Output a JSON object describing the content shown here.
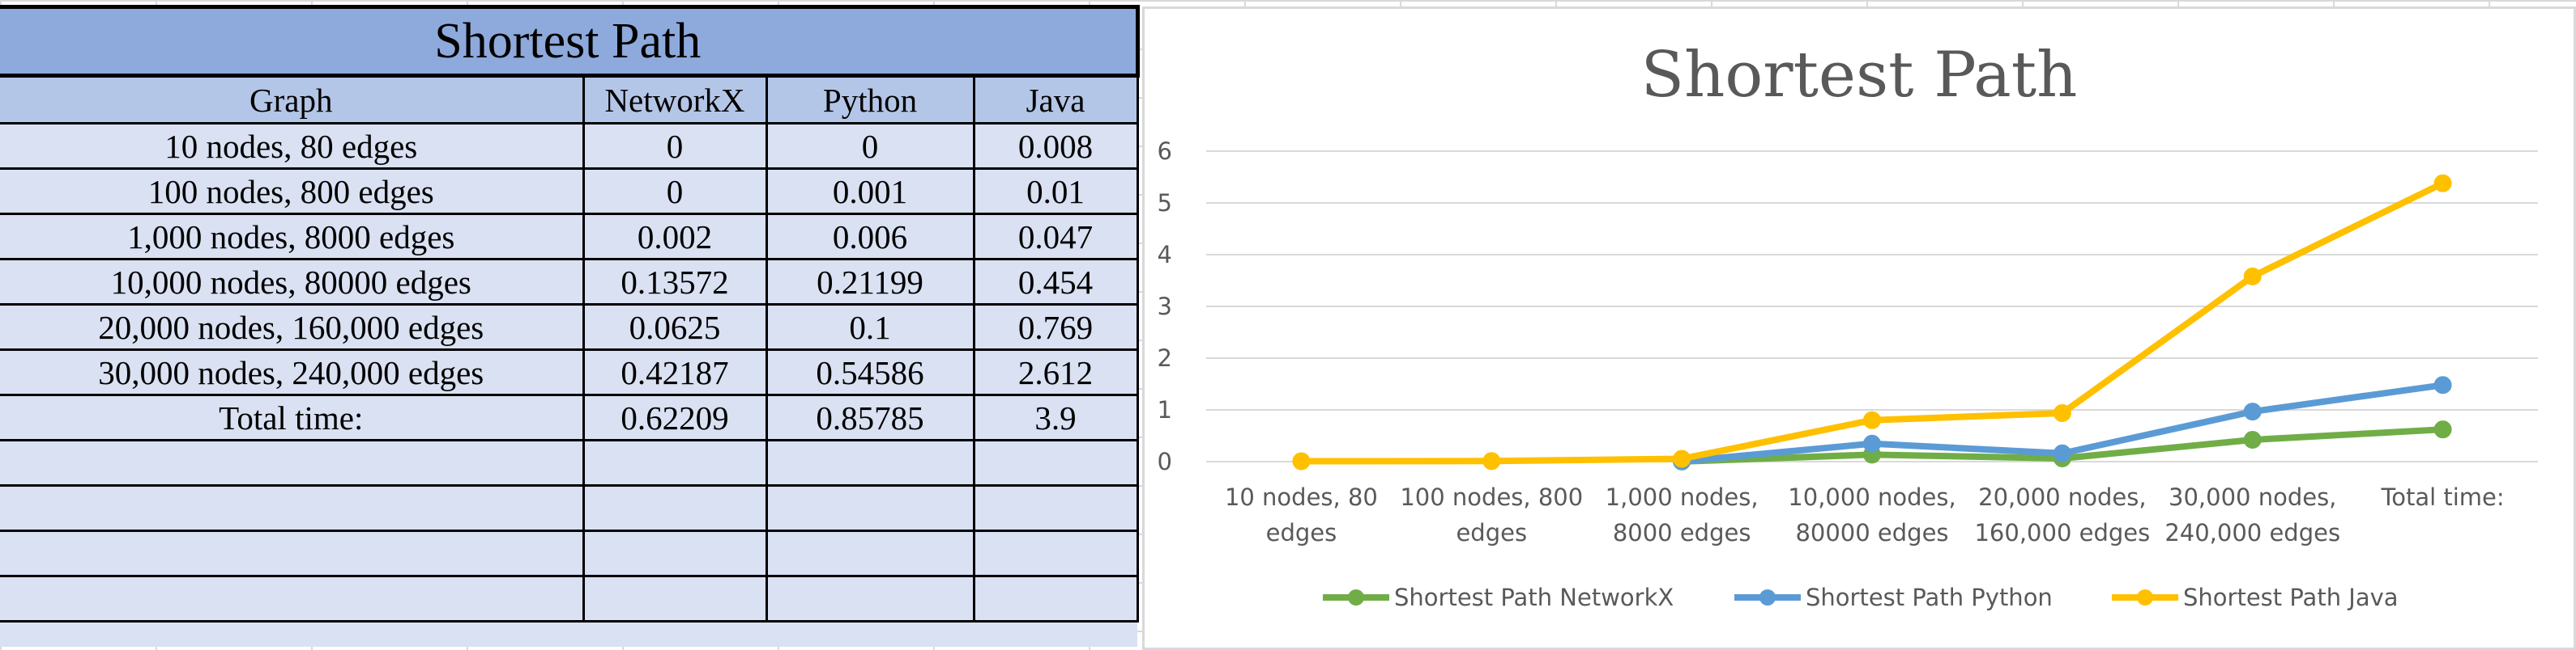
{
  "table": {
    "title": "Shortest Path",
    "headers": [
      "Graph",
      "NetworkX",
      "Python",
      "Java"
    ],
    "rows": [
      [
        "10 nodes, 80 edges",
        "0",
        "0",
        "0.008"
      ],
      [
        "100 nodes, 800 edges",
        "0",
        "0.001",
        "0.01"
      ],
      [
        "1,000 nodes, 8000 edges",
        "0.002",
        "0.006",
        "0.047"
      ],
      [
        "10,000 nodes, 80000 edges",
        "0.13572",
        "0.21199",
        "0.454"
      ],
      [
        "20,000 nodes, 160,000 edges",
        "0.0625",
        "0.1",
        "0.769"
      ],
      [
        "30,000 nodes, 240,000 edges",
        "0.42187",
        "0.54586",
        "2.612"
      ],
      [
        "Total time:",
        "0.62209",
        "0.85785",
        "3.9"
      ],
      [
        "",
        "",
        "",
        ""
      ],
      [
        "",
        "",
        "",
        ""
      ],
      [
        "",
        "",
        "",
        ""
      ],
      [
        "",
        "",
        "",
        ""
      ]
    ]
  },
  "chart_data": {
    "type": "line",
    "title": "Shortest Path",
    "categories": [
      [
        "10 nodes, 80",
        "edges"
      ],
      [
        "100 nodes, 800",
        "edges"
      ],
      [
        "1,000 nodes,",
        "8000 edges"
      ],
      [
        "10,000 nodes,",
        "80000 edges"
      ],
      [
        "20,000 nodes,",
        "160,000 edges"
      ],
      [
        "30,000 nodes,",
        "240,000 edges"
      ],
      [
        "Total time:"
      ]
    ],
    "ylim": [
      0,
      6
    ],
    "yticks": [
      "0",
      "1",
      "2",
      "3",
      "4",
      "5",
      "6"
    ],
    "grid": true,
    "legend_position": "bottom",
    "series": [
      {
        "name": "Shortest Path NetworkX",
        "color": "#70ad47",
        "values": [
          null,
          null,
          0.002,
          0.13572,
          0.0625,
          0.42187,
          0.62209
        ]
      },
      {
        "name": "Shortest Path Python",
        "color": "#5b9bd5",
        "values": [
          null,
          null,
          0.006,
          0.34771,
          0.16,
          0.96773,
          1.47994
        ]
      },
      {
        "name": "Shortest Path Java",
        "color": "#ffc000",
        "values": [
          0.008,
          0.011,
          0.055,
          0.80171,
          0.9375,
          3.57959,
          5.37994
        ]
      }
    ]
  }
}
